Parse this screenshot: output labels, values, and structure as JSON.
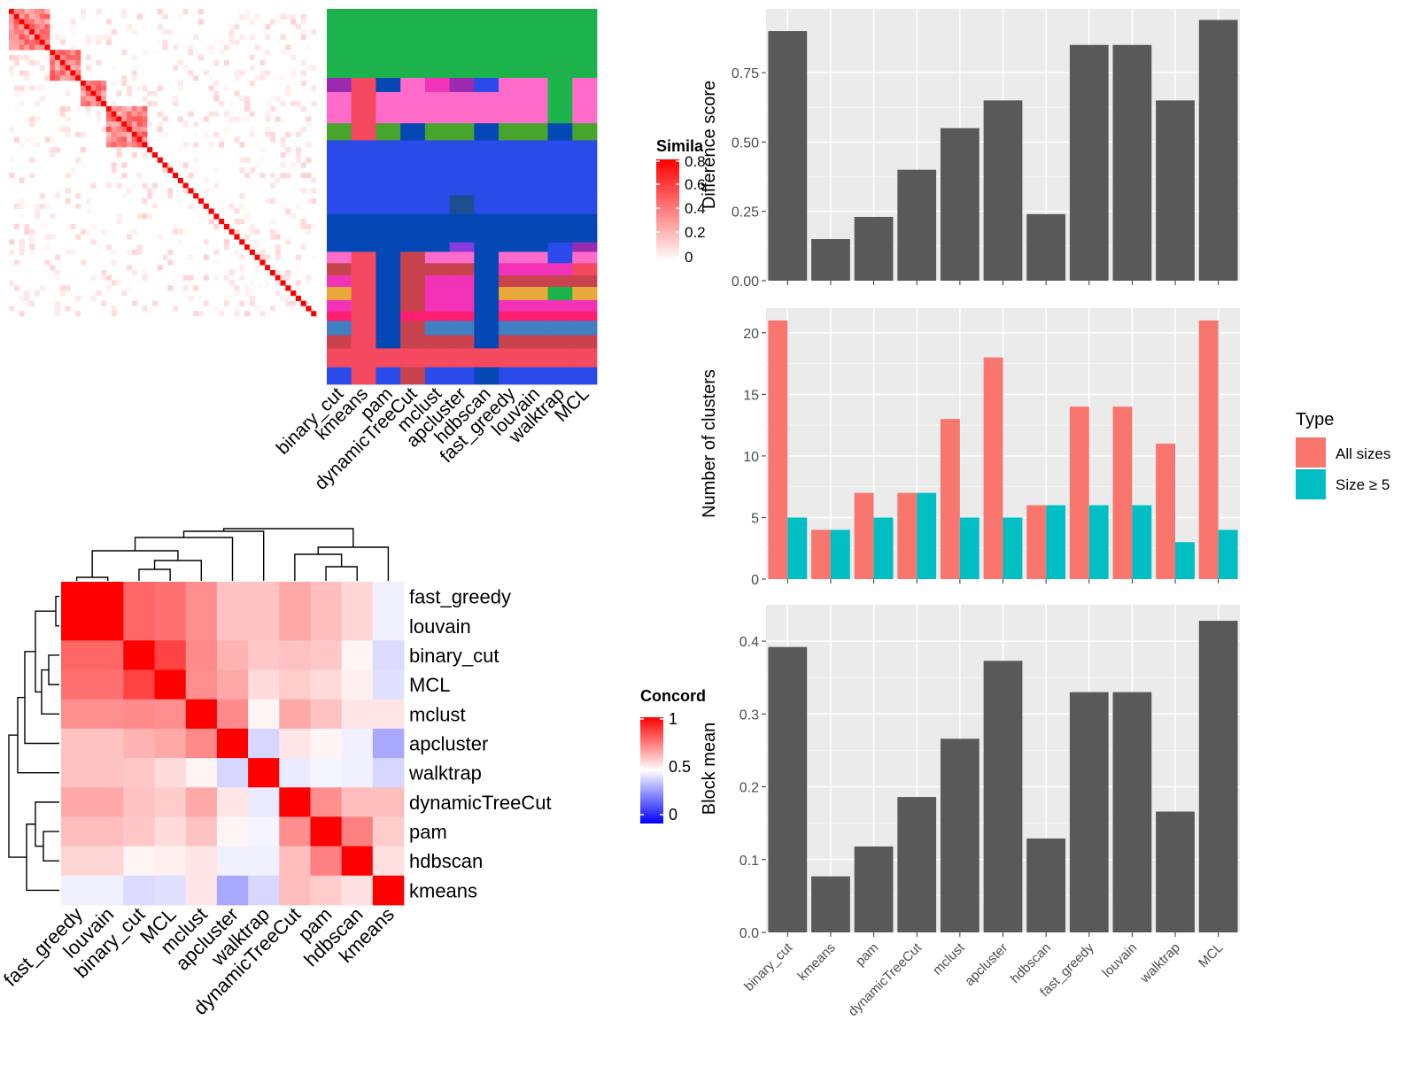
{
  "methods": [
    "binary_cut",
    "kmeans",
    "pam",
    "dynamicTreeCut",
    "mclust",
    "apcluster",
    "hdbscan",
    "fast_greedy",
    "louvain",
    "walktrap",
    "MCL"
  ],
  "heatmap_methods_order": [
    "fast_greedy",
    "louvain",
    "binary_cut",
    "MCL",
    "mclust",
    "apcluster",
    "walktrap",
    "dynamicTreeCut",
    "pam",
    "hdbscan",
    "kmeans"
  ],
  "similarity_legend": {
    "title": "Simila",
    "ticks": [
      "0.8",
      "0.6",
      "0.4",
      "0.2",
      "0"
    ]
  },
  "concordance_legend": {
    "title": "Concord",
    "ticks": [
      "1",
      "0.5",
      "0"
    ]
  },
  "type_legend": {
    "title": "Type",
    "items": [
      {
        "label": "All sizes",
        "color": "#F8766D"
      },
      {
        "label": "Size ≥ 5",
        "color": "#00BFC4"
      }
    ]
  },
  "chart_data": [
    {
      "type": "bar",
      "name": "difference_score",
      "categories": [
        "binary_cut",
        "kmeans",
        "pam",
        "dynamicTreeCut",
        "mclust",
        "apcluster",
        "hdbscan",
        "fast_greedy",
        "louvain",
        "walktrap",
        "MCL"
      ],
      "values": [
        0.9,
        0.15,
        0.23,
        0.4,
        0.55,
        0.65,
        0.24,
        0.85,
        0.85,
        0.65,
        0.94
      ],
      "ylabel": "Difference score",
      "ylim": [
        0,
        0.98
      ],
      "yticks": [
        "0.00",
        "0.25",
        "0.50",
        "0.75"
      ],
      "ytick_values": [
        0,
        0.25,
        0.5,
        0.75
      ]
    },
    {
      "type": "bar",
      "name": "number_of_clusters",
      "categories": [
        "binary_cut",
        "kmeans",
        "pam",
        "dynamicTreeCut",
        "mclust",
        "apcluster",
        "hdbscan",
        "fast_greedy",
        "louvain",
        "walktrap",
        "MCL"
      ],
      "series": [
        {
          "name": "All sizes",
          "values": [
            21,
            4,
            7,
            7,
            13,
            18,
            6,
            14,
            14,
            11,
            21
          ]
        },
        {
          "name": "Size ≥ 5",
          "values": [
            5,
            4,
            5,
            7,
            5,
            5,
            6,
            6,
            6,
            3,
            4
          ]
        }
      ],
      "ylabel": "Number of clusters",
      "ylim": [
        0,
        22
      ],
      "yticks": [
        "0",
        "5",
        "10",
        "15",
        "20"
      ],
      "ytick_values": [
        0,
        5,
        10,
        15,
        20
      ]
    },
    {
      "type": "bar",
      "name": "block_mean",
      "categories": [
        "binary_cut",
        "kmeans",
        "pam",
        "dynamicTreeCut",
        "mclust",
        "apcluster",
        "hdbscan",
        "fast_greedy",
        "louvain",
        "walktrap",
        "MCL"
      ],
      "values": [
        0.392,
        0.077,
        0.118,
        0.186,
        0.266,
        0.373,
        0.129,
        0.33,
        0.33,
        0.166,
        0.428
      ],
      "ylabel": "Block mean",
      "ylim": [
        0,
        0.45
      ],
      "yticks": [
        "0.0",
        "0.1",
        "0.2",
        "0.3",
        "0.4"
      ],
      "ytick_values": [
        0,
        0.1,
        0.2,
        0.3,
        0.4
      ]
    },
    {
      "type": "heatmap",
      "name": "concordance",
      "rows": [
        "fast_greedy",
        "louvain",
        "binary_cut",
        "MCL",
        "mclust",
        "apcluster",
        "walktrap",
        "dynamicTreeCut",
        "pam",
        "hdbscan",
        "kmeans"
      ],
      "columns": [
        "fast_greedy",
        "louvain",
        "binary_cut",
        "MCL",
        "mclust",
        "apcluster",
        "walktrap",
        "dynamicTreeCut",
        "pam",
        "hdbscan",
        "kmeans"
      ],
      "values": [
        [
          1.0,
          1.0,
          0.8,
          0.78,
          0.72,
          0.62,
          0.62,
          0.67,
          0.63,
          0.58,
          0.47
        ],
        [
          1.0,
          1.0,
          0.8,
          0.78,
          0.72,
          0.62,
          0.62,
          0.67,
          0.63,
          0.58,
          0.47
        ],
        [
          0.8,
          0.8,
          1.0,
          0.87,
          0.73,
          0.65,
          0.61,
          0.62,
          0.61,
          0.52,
          0.43
        ],
        [
          0.78,
          0.78,
          0.87,
          1.0,
          0.72,
          0.67,
          0.57,
          0.6,
          0.57,
          0.53,
          0.44
        ],
        [
          0.72,
          0.72,
          0.73,
          0.72,
          1.0,
          0.73,
          0.52,
          0.67,
          0.62,
          0.55,
          0.55
        ],
        [
          0.62,
          0.62,
          0.65,
          0.67,
          0.73,
          1.0,
          0.42,
          0.55,
          0.52,
          0.47,
          0.33
        ],
        [
          0.62,
          0.62,
          0.61,
          0.57,
          0.52,
          0.42,
          1.0,
          0.46,
          0.48,
          0.47,
          0.42
        ],
        [
          0.67,
          0.67,
          0.62,
          0.6,
          0.67,
          0.55,
          0.46,
          1.0,
          0.72,
          0.63,
          0.63
        ],
        [
          0.63,
          0.63,
          0.61,
          0.57,
          0.62,
          0.52,
          0.48,
          0.72,
          1.0,
          0.75,
          0.6
        ],
        [
          0.58,
          0.58,
          0.52,
          0.53,
          0.55,
          0.47,
          0.47,
          0.63,
          0.75,
          1.0,
          0.56
        ],
        [
          0.47,
          0.47,
          0.43,
          0.44,
          0.55,
          0.33,
          0.42,
          0.63,
          0.6,
          0.56,
          1.0
        ]
      ],
      "scale": {
        "min": 0,
        "mid": 0.5,
        "max": 1,
        "colors": [
          "#0000FF",
          "#FFFFFF",
          "#FF0000"
        ]
      }
    }
  ],
  "colors": {
    "bar": "#595959",
    "panel_bg": "#EBEBEB",
    "grid": "#FFFFFF",
    "all_sizes": "#F8766D",
    "size_ge5": "#00BFC4",
    "heat_high": "#FF0000"
  }
}
